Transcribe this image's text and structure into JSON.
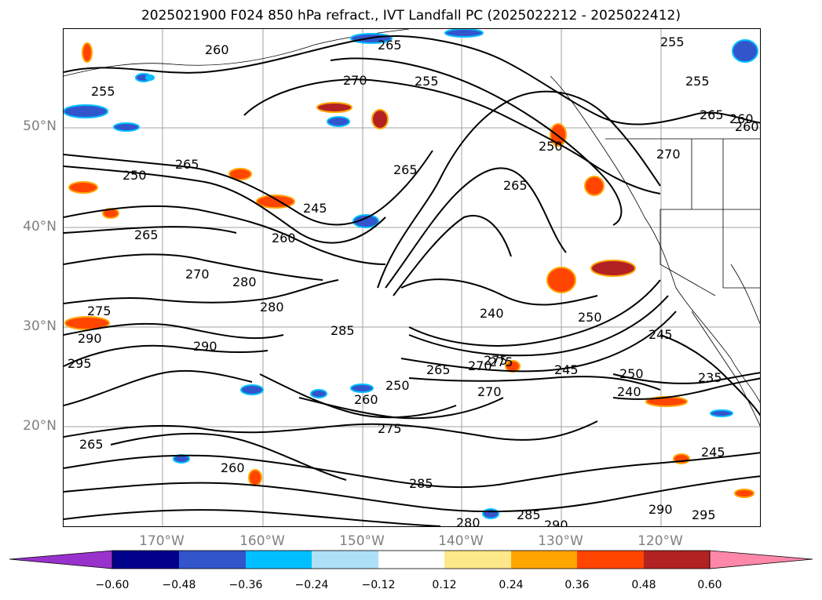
{
  "title": "2025021900 F024 850 hPa refract., IVT Landfall PC (2025022212 - 2025022412)",
  "map": {
    "lat_labels": [
      "50°N",
      "40°N",
      "30°N",
      "20°N"
    ],
    "lon_labels": [
      "170°W",
      "160°W",
      "150°W",
      "140°W",
      "130°W",
      "120°W"
    ],
    "gridline_color": "#a0a0a0",
    "contour_color": "#000000",
    "contour_labels": [
      "265",
      "255",
      "260",
      "270",
      "255",
      "255",
      "250",
      "265",
      "260",
      "265",
      "250",
      "265",
      "265",
      "245",
      "260",
      "270",
      "265",
      "255",
      "260",
      "270",
      "280",
      "280",
      "285",
      "275",
      "290",
      "290",
      "295",
      "245",
      "240",
      "250",
      "270",
      "275",
      "245",
      "250",
      "240",
      "235",
      "265",
      "275",
      "250",
      "260",
      "270",
      "275",
      "285",
      "280",
      "290",
      "285",
      "290",
      "295",
      "245",
      "265",
      "260"
    ]
  },
  "colorbar": {
    "colors": [
      "#9932cc",
      "#00008b",
      "#3355cc",
      "#00bfff",
      "#aee0f8",
      "#ffffff",
      "#ffe88a",
      "#ffa500",
      "#ff4500",
      "#b22222",
      "#ff88aa"
    ],
    "ticks": [
      "−0.60",
      "−0.48",
      "−0.36",
      "−0.24",
      "−0.12",
      "0.12",
      "0.24",
      "0.36",
      "0.48",
      "0.60"
    ]
  }
}
